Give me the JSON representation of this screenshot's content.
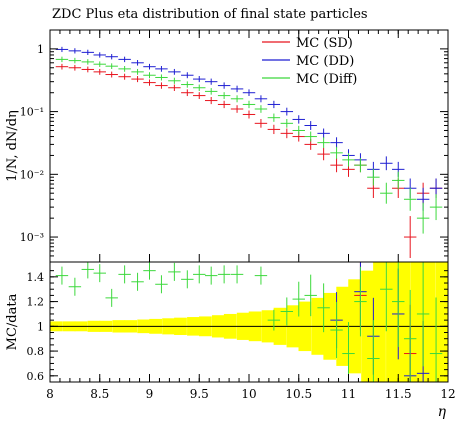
{
  "chart_data": [
    {
      "type": "scatter",
      "title": "ZDC Plus eta distribution of final state particles",
      "xlabel": "",
      "ylabel": "1/N, dN/dη",
      "yscale": "log",
      "xlim": [
        8,
        12
      ],
      "ylim": [
        0.0004,
        2
      ],
      "ytick_labels": [
        "1",
        "10⁻¹",
        "10⁻²",
        "10⁻³"
      ],
      "yticks": [
        1,
        0.1,
        0.01,
        0.001
      ],
      "legend": "top-right",
      "series": [
        {
          "name": "MC (SD)",
          "color": "#e8141e",
          "points": [
            {
              "x": 8.12,
              "y": 0.52
            },
            {
              "x": 8.25,
              "y": 0.5
            },
            {
              "x": 8.38,
              "y": 0.47
            },
            {
              "x": 8.5,
              "y": 0.43
            },
            {
              "x": 8.62,
              "y": 0.39
            },
            {
              "x": 8.75,
              "y": 0.36
            },
            {
              "x": 8.88,
              "y": 0.33
            },
            {
              "x": 9.0,
              "y": 0.29
            },
            {
              "x": 9.12,
              "y": 0.26
            },
            {
              "x": 9.25,
              "y": 0.24
            },
            {
              "x": 9.38,
              "y": 0.2
            },
            {
              "x": 9.5,
              "y": 0.18
            },
            {
              "x": 9.62,
              "y": 0.15
            },
            {
              "x": 9.75,
              "y": 0.13
            },
            {
              "x": 9.88,
              "y": 0.11
            },
            {
              "x": 10.0,
              "y": 0.09
            },
            {
              "x": 10.12,
              "y": 0.065
            },
            {
              "x": 10.25,
              "y": 0.052
            },
            {
              "x": 10.38,
              "y": 0.045
            },
            {
              "x": 10.5,
              "y": 0.04
            },
            {
              "x": 10.62,
              "y": 0.03
            },
            {
              "x": 10.75,
              "y": 0.021
            },
            {
              "x": 10.88,
              "y": 0.014
            },
            {
              "x": 11.0,
              "y": 0.012
            },
            {
              "x": 11.12,
              "y": 0.014
            },
            {
              "x": 11.25,
              "y": 0.006
            },
            {
              "x": 11.5,
              "y": 0.006
            },
            {
              "x": 11.62,
              "y": 0.001
            },
            {
              "x": 11.75,
              "y": 0.005
            },
            {
              "x": 11.88,
              "y": 0.006
            }
          ]
        },
        {
          "name": "MC (DD)",
          "color": "#1e1ed2",
          "points": [
            {
              "x": 8.12,
              "y": 0.98
            },
            {
              "x": 8.25,
              "y": 0.93
            },
            {
              "x": 8.38,
              "y": 0.88
            },
            {
              "x": 8.5,
              "y": 0.8
            },
            {
              "x": 8.62,
              "y": 0.75
            },
            {
              "x": 8.75,
              "y": 0.68
            },
            {
              "x": 8.88,
              "y": 0.6
            },
            {
              "x": 9.0,
              "y": 0.52
            },
            {
              "x": 9.12,
              "y": 0.48
            },
            {
              "x": 9.25,
              "y": 0.43
            },
            {
              "x": 9.38,
              "y": 0.38
            },
            {
              "x": 9.5,
              "y": 0.33
            },
            {
              "x": 9.62,
              "y": 0.3
            },
            {
              "x": 9.75,
              "y": 0.26
            },
            {
              "x": 9.88,
              "y": 0.23
            },
            {
              "x": 10.0,
              "y": 0.2
            },
            {
              "x": 10.12,
              "y": 0.16
            },
            {
              "x": 10.25,
              "y": 0.13
            },
            {
              "x": 10.38,
              "y": 0.1
            },
            {
              "x": 10.5,
              "y": 0.075
            },
            {
              "x": 10.62,
              "y": 0.06
            },
            {
              "x": 10.75,
              "y": 0.045
            },
            {
              "x": 10.88,
              "y": 0.032
            },
            {
              "x": 11.0,
              "y": 0.02
            },
            {
              "x": 11.12,
              "y": 0.017
            },
            {
              "x": 11.25,
              "y": 0.012
            },
            {
              "x": 11.38,
              "y": 0.015
            },
            {
              "x": 11.5,
              "y": 0.012
            },
            {
              "x": 11.62,
              "y": 0.006
            },
            {
              "x": 11.75,
              "y": 0.004
            },
            {
              "x": 11.88,
              "y": 0.006
            }
          ]
        },
        {
          "name": "MC (Diff)",
          "color": "#3cd83c",
          "points": [
            {
              "x": 8.12,
              "y": 0.68
            },
            {
              "x": 8.25,
              "y": 0.65
            },
            {
              "x": 8.38,
              "y": 0.62
            },
            {
              "x": 8.5,
              "y": 0.57
            },
            {
              "x": 8.62,
              "y": 0.53
            },
            {
              "x": 8.75,
              "y": 0.48
            },
            {
              "x": 8.88,
              "y": 0.43
            },
            {
              "x": 9.0,
              "y": 0.38
            },
            {
              "x": 9.12,
              "y": 0.35
            },
            {
              "x": 9.25,
              "y": 0.31
            },
            {
              "x": 9.38,
              "y": 0.27
            },
            {
              "x": 9.5,
              "y": 0.24
            },
            {
              "x": 9.62,
              "y": 0.21
            },
            {
              "x": 9.75,
              "y": 0.18
            },
            {
              "x": 9.88,
              "y": 0.16
            },
            {
              "x": 10.0,
              "y": 0.13
            },
            {
              "x": 10.12,
              "y": 0.11
            },
            {
              "x": 10.25,
              "y": 0.08
            },
            {
              "x": 10.38,
              "y": 0.065
            },
            {
              "x": 10.5,
              "y": 0.05
            },
            {
              "x": 10.62,
              "y": 0.04
            },
            {
              "x": 10.75,
              "y": 0.032
            },
            {
              "x": 10.88,
              "y": 0.022
            },
            {
              "x": 11.0,
              "y": 0.017
            },
            {
              "x": 11.12,
              "y": 0.014
            },
            {
              "x": 11.25,
              "y": 0.009
            },
            {
              "x": 11.38,
              "y": 0.005
            },
            {
              "x": 11.5,
              "y": 0.008
            },
            {
              "x": 11.62,
              "y": 0.004
            },
            {
              "x": 11.75,
              "y": 0.002
            },
            {
              "x": 11.88,
              "y": 0.003
            }
          ]
        }
      ]
    },
    {
      "type": "scatter",
      "title": "",
      "xlabel": "η",
      "ylabel": "MC/data",
      "xlim": [
        8,
        12
      ],
      "ylim": [
        0.55,
        1.52
      ],
      "xticks": [
        8,
        8.5,
        9,
        9.5,
        10,
        10.5,
        11,
        11.5,
        12
      ],
      "xtick_labels": [
        "8",
        "8.5",
        "9",
        "9.5",
        "10",
        "10.5",
        "11",
        "11.5",
        "12"
      ],
      "yticks": [
        0.6,
        0.8,
        1,
        1.2,
        1.4
      ],
      "ytick_labels": [
        "0.6",
        "0.8",
        "1",
        "1.2",
        "1.4"
      ],
      "reference_line": 1,
      "band_color": "#ffff00",
      "band": [
        {
          "x": 8.06,
          "half": 0.04
        },
        {
          "x": 8.19,
          "half": 0.04
        },
        {
          "x": 8.31,
          "half": 0.04
        },
        {
          "x": 8.44,
          "half": 0.045
        },
        {
          "x": 8.56,
          "half": 0.045
        },
        {
          "x": 8.69,
          "half": 0.05
        },
        {
          "x": 8.81,
          "half": 0.05
        },
        {
          "x": 8.94,
          "half": 0.055
        },
        {
          "x": 9.06,
          "half": 0.06
        },
        {
          "x": 9.19,
          "half": 0.065
        },
        {
          "x": 9.31,
          "half": 0.07
        },
        {
          "x": 9.44,
          "half": 0.075
        },
        {
          "x": 9.56,
          "half": 0.08
        },
        {
          "x": 9.69,
          "half": 0.09
        },
        {
          "x": 9.81,
          "half": 0.1
        },
        {
          "x": 9.94,
          "half": 0.11
        },
        {
          "x": 10.06,
          "half": 0.12
        },
        {
          "x": 10.19,
          "half": 0.13
        },
        {
          "x": 10.31,
          "half": 0.15
        },
        {
          "x": 10.44,
          "half": 0.17
        },
        {
          "x": 10.56,
          "half": 0.2
        },
        {
          "x": 10.69,
          "half": 0.23
        },
        {
          "x": 10.81,
          "half": 0.27
        },
        {
          "x": 10.94,
          "half": 0.32
        },
        {
          "x": 11.06,
          "half": 0.38
        },
        {
          "x": 11.19,
          "half": 0.45
        },
        {
          "x": 11.31,
          "half": 0.55
        },
        {
          "x": 11.44,
          "half": 0.6
        },
        {
          "x": 11.56,
          "half": 0.6
        },
        {
          "x": 11.69,
          "half": 0.6
        },
        {
          "x": 11.81,
          "half": 0.6
        },
        {
          "x": 11.94,
          "half": 0.6
        }
      ],
      "series": [
        {
          "name": "MC (SD)",
          "color": "#e8141e",
          "points": [
            {
              "x": 11.12,
              "y": 1.25
            },
            {
              "x": 11.62,
              "y": 0.78
            }
          ]
        },
        {
          "name": "MC (DD)",
          "color": "#1e1ed2",
          "points": [
            {
              "x": 10.88,
              "y": 1.05
            },
            {
              "x": 11.12,
              "y": 1.28
            },
            {
              "x": 11.25,
              "y": 0.92
            },
            {
              "x": 11.5,
              "y": 1.1
            },
            {
              "x": 11.62,
              "y": 0.6
            },
            {
              "x": 11.75,
              "y": 0.62
            }
          ]
        },
        {
          "name": "MC (Diff)",
          "color": "#3cd83c",
          "points": [
            {
              "x": 8.12,
              "y": 1.41
            },
            {
              "x": 8.25,
              "y": 1.32
            },
            {
              "x": 8.38,
              "y": 1.46
            },
            {
              "x": 8.5,
              "y": 1.43
            },
            {
              "x": 8.62,
              "y": 1.23
            },
            {
              "x": 8.75,
              "y": 1.42
            },
            {
              "x": 8.88,
              "y": 1.36
            },
            {
              "x": 9.0,
              "y": 1.45
            },
            {
              "x": 9.12,
              "y": 1.34
            },
            {
              "x": 9.25,
              "y": 1.44
            },
            {
              "x": 9.38,
              "y": 1.38
            },
            {
              "x": 9.5,
              "y": 1.42
            },
            {
              "x": 9.62,
              "y": 1.41
            },
            {
              "x": 9.75,
              "y": 1.42
            },
            {
              "x": 9.88,
              "y": 1.42
            },
            {
              "x": 10.12,
              "y": 1.41
            },
            {
              "x": 10.25,
              "y": 1.05
            },
            {
              "x": 10.38,
              "y": 1.12
            },
            {
              "x": 10.5,
              "y": 1.22
            },
            {
              "x": 10.62,
              "y": 1.25
            },
            {
              "x": 10.75,
              "y": 1.15
            },
            {
              "x": 10.88,
              "y": 0.97
            },
            {
              "x": 11.0,
              "y": 0.78
            },
            {
              "x": 11.12,
              "y": 1.2
            },
            {
              "x": 11.25,
              "y": 0.74
            },
            {
              "x": 11.38,
              "y": 1.3
            },
            {
              "x": 11.5,
              "y": 1.2
            },
            {
              "x": 11.62,
              "y": 0.9
            },
            {
              "x": 11.75,
              "y": 1.1
            },
            {
              "x": 11.88,
              "y": 0.78
            }
          ]
        }
      ]
    }
  ]
}
